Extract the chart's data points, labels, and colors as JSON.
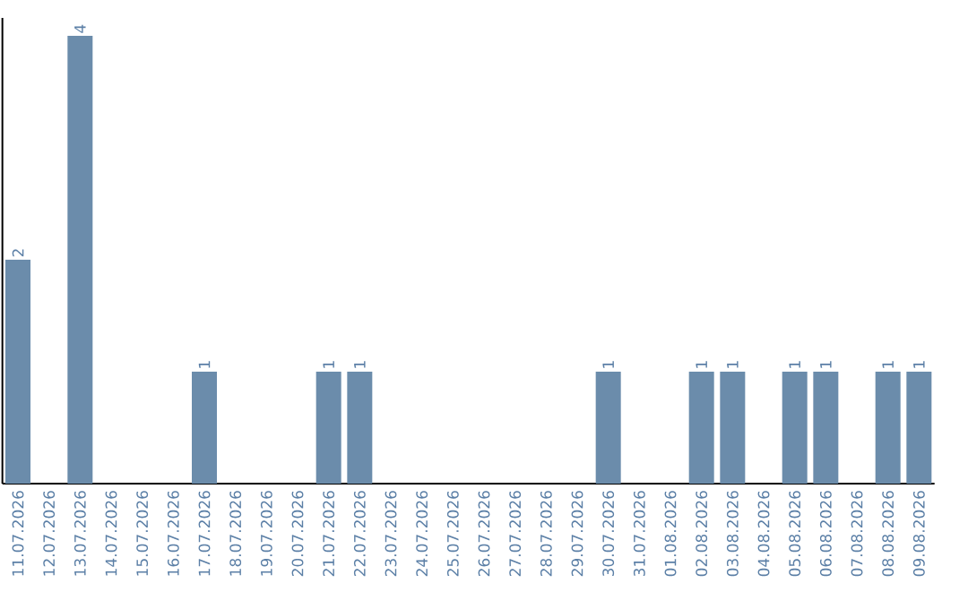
{
  "chart_data": {
    "type": "bar",
    "categories": [
      "11.07.2026",
      "12.07.2026",
      "13.07.2026",
      "14.07.2026",
      "15.07.2026",
      "16.07.2026",
      "17.07.2026",
      "18.07.2026",
      "19.07.2026",
      "20.07.2026",
      "21.07.2026",
      "22.07.2026",
      "23.07.2026",
      "24.07.2026",
      "25.07.2026",
      "26.07.2026",
      "27.07.2026",
      "28.07.2026",
      "29.07.2026",
      "30.07.2026",
      "31.07.2026",
      "01.08.2026",
      "02.08.2026",
      "03.08.2026",
      "04.08.2026",
      "05.08.2026",
      "06.08.2026",
      "07.08.2026",
      "08.08.2026",
      "09.08.2026"
    ],
    "values": [
      2,
      null,
      4,
      null,
      null,
      null,
      1,
      null,
      null,
      null,
      1,
      1,
      null,
      null,
      null,
      null,
      null,
      null,
      null,
      1,
      null,
      null,
      1,
      1,
      null,
      1,
      1,
      null,
      1,
      1
    ],
    "color": "#6b8cab",
    "data_labels": true
  }
}
